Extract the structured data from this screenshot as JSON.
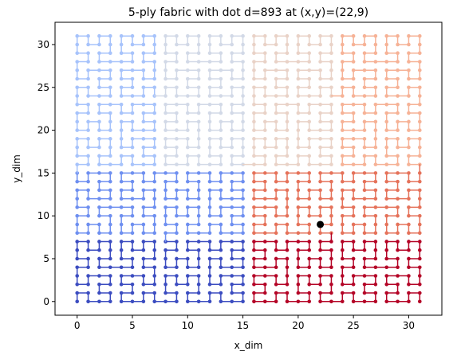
{
  "chart_data": {
    "type": "line",
    "title": "5-ply fabric with dot d=893 at (x,y)=(22,9)",
    "xlabel": "x_dim",
    "ylabel": "y_dim",
    "xlim": [
      -2,
      33
    ],
    "ylim": [
      -1.6,
      32.6
    ],
    "x_ticks": [
      0,
      5,
      10,
      15,
      20,
      25,
      30
    ],
    "y_ticks": [
      0,
      5,
      10,
      15,
      20,
      25,
      30
    ],
    "grid": false,
    "legend": "none",
    "grid_size": [
      32,
      32
    ],
    "curve": "2D Hilbert curve over 32x32 grid (1024 points, d = 0..1023), markers at every point, line segments coloured by position along the curve",
    "colormap": "coolwarm",
    "colormap_stops": [
      "#3b4cc0",
      "#6788ee",
      "#9abbff",
      "#c9d7f0",
      "#dddcdc",
      "#f2cbb7",
      "#f7a889",
      "#e26952",
      "#b40426"
    ],
    "marker": {
      "d": 893,
      "x": 22,
      "y": 9,
      "color": "#000000"
    }
  }
}
